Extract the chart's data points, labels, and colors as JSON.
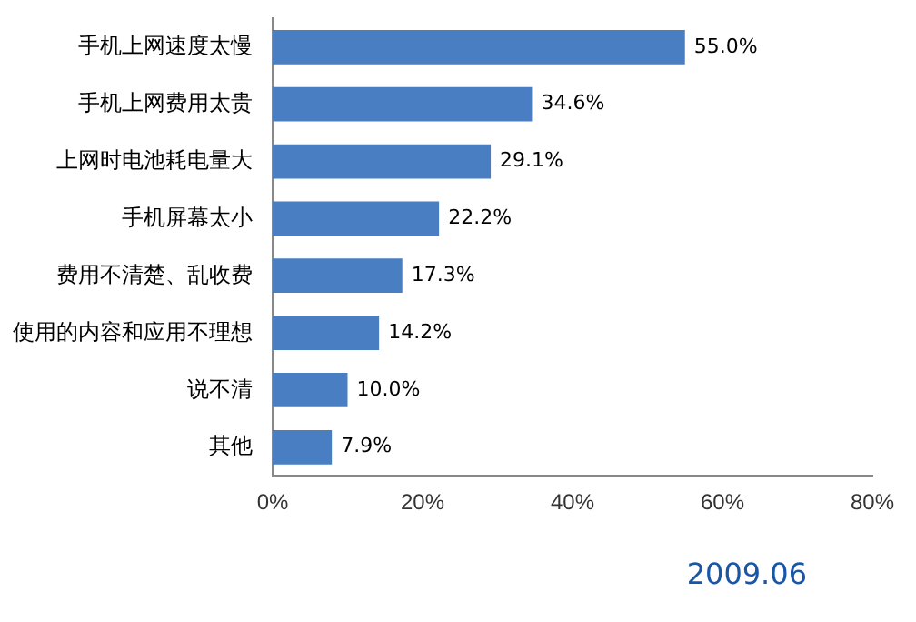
{
  "chart_data": {
    "type": "bar",
    "orientation": "horizontal",
    "categories": [
      "手机上网速度太慢",
      "手机上网费用太贵",
      "上网时电池耗电量大",
      "手机屏幕太小",
      "费用不清楚、乱收费",
      "使用的内容和应用不理想",
      "说不清",
      "其他"
    ],
    "values": [
      55.0,
      34.6,
      29.1,
      22.2,
      17.3,
      14.2,
      10.0,
      7.9
    ],
    "value_labels": [
      "55.0%",
      "34.6%",
      "29.1%",
      "22.2%",
      "17.3%",
      "14.2%",
      "10.0%",
      "7.9%"
    ],
    "color": "#4a7ec2",
    "xlim": [
      0,
      80
    ],
    "xticks": [
      {
        "value": 0,
        "label": "0%"
      },
      {
        "value": 20,
        "label": "20%"
      },
      {
        "value": 40,
        "label": "40%"
      },
      {
        "value": 60,
        "label": "60%"
      },
      {
        "value": 80,
        "label": "80%"
      }
    ],
    "grid": false,
    "legend": false,
    "annotations": [
      "2009.06"
    ]
  }
}
